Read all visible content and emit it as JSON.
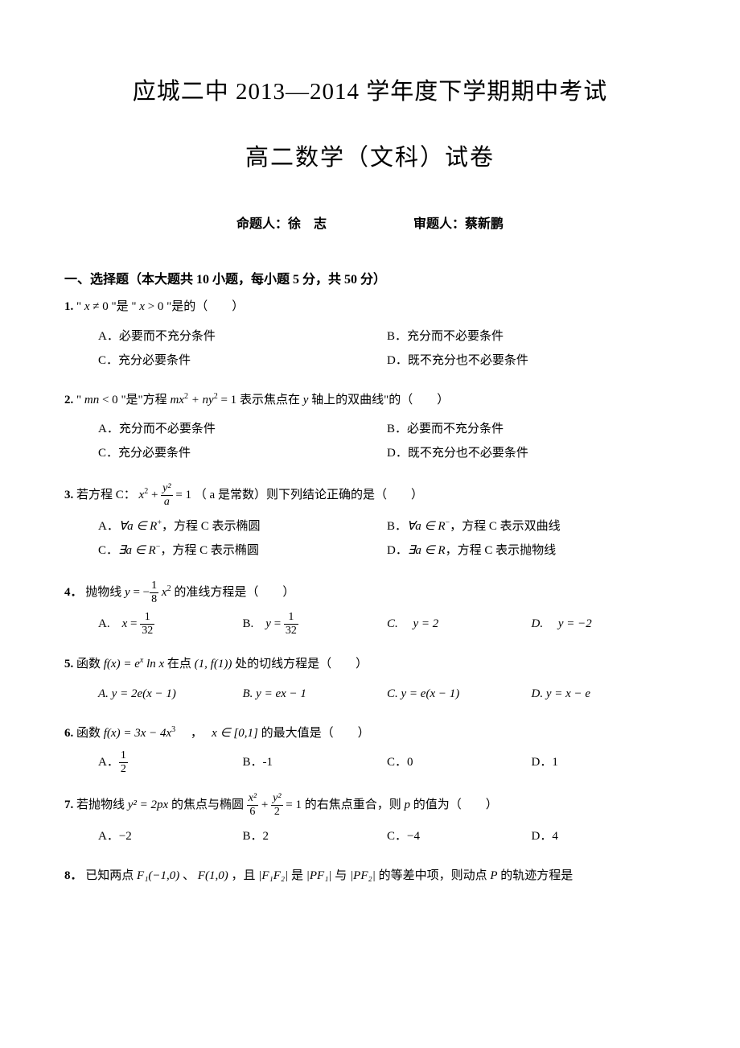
{
  "title_main": "应城二中 2013—2014 学年度下学期期中考试",
  "title_sub": "高二数学（文科）试卷",
  "author_left_label": "命题人：",
  "author_left_name": "徐　志",
  "author_right_label": "审题人：",
  "author_right_name": "蔡新鹏",
  "section1_head": "一、选择题（本大题共 10 小题，每小题 5 分，共 50 分）",
  "q1": {
    "num": "1.",
    "stem_1": "\" ",
    "stem_eq1_var": "x",
    "stem_eq1_rel": " ≠ 0",
    "stem_2": " \"是 \" ",
    "stem_eq2_var": "x",
    "stem_eq2_rel": " > 0",
    "stem_3": " \"是的（　　）",
    "optA": "A．必要而不充分条件",
    "optB": "B．充分而不必要条件",
    "optC": "C．充分必要条件",
    "optD": "D．既不充分也不必要条件"
  },
  "q2": {
    "num": "2.",
    "stem_1": "\" ",
    "stem_var1": "mn",
    "stem_rel1": " < 0",
    "stem_2": " \"是\"方程 ",
    "eq_a": "mx",
    "eq_b": " + ny",
    "eq_c": " = 1",
    "stem_3": " 表示焦点在 ",
    "yvar": "y",
    "stem_4": " 轴上的双曲线\"的（　　）",
    "optA": "A．充分而不必要条件",
    "optB": "B．必要而不充分条件",
    "optC": "C．充分必要条件",
    "optD": "D．既不充分也不必要条件"
  },
  "q3": {
    "num": "3.",
    "stem_1": "若方程 C：",
    "stem_eq_x": "x",
    "stem_eq_plus": " + ",
    "frac_num": "y²",
    "frac_den": "a",
    "stem_eq_eq": " = 1",
    "stem_2": "（ a 是常数）则下列结论正确的是（　　）",
    "optA_pre": "A．",
    "optA_sym": "∀a ∈ R",
    "optA_sup": "+",
    "optA_post": "，方程 C 表示椭圆",
    "optB_pre": "B．",
    "optB_sym": "∀a ∈ R",
    "optB_sup": "−",
    "optB_post": "，方程 C 表示双曲线",
    "optC_pre": "C．",
    "optC_sym": "∃a ∈ R",
    "optC_sup": "−",
    "optC_post": "，方程 C 表示椭圆",
    "optD_pre": "D．",
    "optD_sym": "∃a ∈ R",
    "optD_post": "，方程 C 表示抛物线"
  },
  "q4": {
    "num": "4．",
    "stem_1": "抛物线 ",
    "eq_y": "y",
    "eq_eq": " = ",
    "eq_neg": "−",
    "frac_num": "1",
    "frac_den": "8",
    "eq_x": " x",
    "stem_2": " 的准线方程是（　　）",
    "optA_pre": "A.　",
    "optA_var": "x",
    "optA_eq": " = ",
    "optA_num": "1",
    "optA_den": "32",
    "optB_pre": "B.　",
    "optB_var": "y",
    "optB_eq": " = ",
    "optB_num": "1",
    "optB_den": "32",
    "optC": "C.　 y = 2",
    "optD": "D.　 y = −2"
  },
  "q5": {
    "num": "5.",
    "stem_1": "函数 ",
    "fx": "f(x) = e",
    "fx2": " ln x",
    "stem_2": " 在点 ",
    "pt": "(1, f(1))",
    "stem_3": " 处的切线方程是（　　）",
    "optA": "A. y = 2e(x − 1)",
    "optB": "B. y = ex − 1",
    "optC": "C. y = e(x − 1)",
    "optD": "D. y = x − e"
  },
  "q6": {
    "num": "6.",
    "stem_1": "函数 ",
    "fx": "f(x) = 3x − 4x",
    "stem_2": "　，　",
    "dom": "x ∈ [0,1]",
    "stem_3": " 的最大值是（　　）",
    "optA_pre": "A．",
    "optA_num": "1",
    "optA_den": "2",
    "optB": "B．-1",
    "optC": "C．0",
    "optD": "D．1"
  },
  "q7": {
    "num": "7.",
    "stem_1": "若抛物线 ",
    "para": "y² = 2px",
    "stem_2": " 的焦点与椭圆 ",
    "frac1_num": "x²",
    "frac1_den": "6",
    "plus": " + ",
    "frac2_num": "y²",
    "frac2_den": "2",
    "eq1": " = 1",
    "stem_3": " 的右焦点重合，则 ",
    "pvar": "p",
    "stem_4": " 的值为（　　）",
    "optA": "A．−2",
    "optB": "B．2",
    "optC": "C．−4",
    "optD": "D．4"
  },
  "q8": {
    "num": "8．",
    "stem_1": "已知两点 ",
    "F1": "F₁(−1,0)",
    "sep1": " 、",
    "F2": "F(1,0)",
    "stem_2": "，且 ",
    "abs1": "|F₁F₂|",
    "stem_3": " 是 ",
    "abs2": "|PF₁|",
    "stem_4": " 与 ",
    "abs3": "|PF₂|",
    "stem_5": " 的等差中项，则动点 ",
    "P": "P",
    "stem_6": " 的轨迹方程是"
  },
  "colors": {
    "background": "#ffffff",
    "text": "#000000"
  },
  "fontsize": {
    "title": 29,
    "body": 15,
    "section": 16
  }
}
